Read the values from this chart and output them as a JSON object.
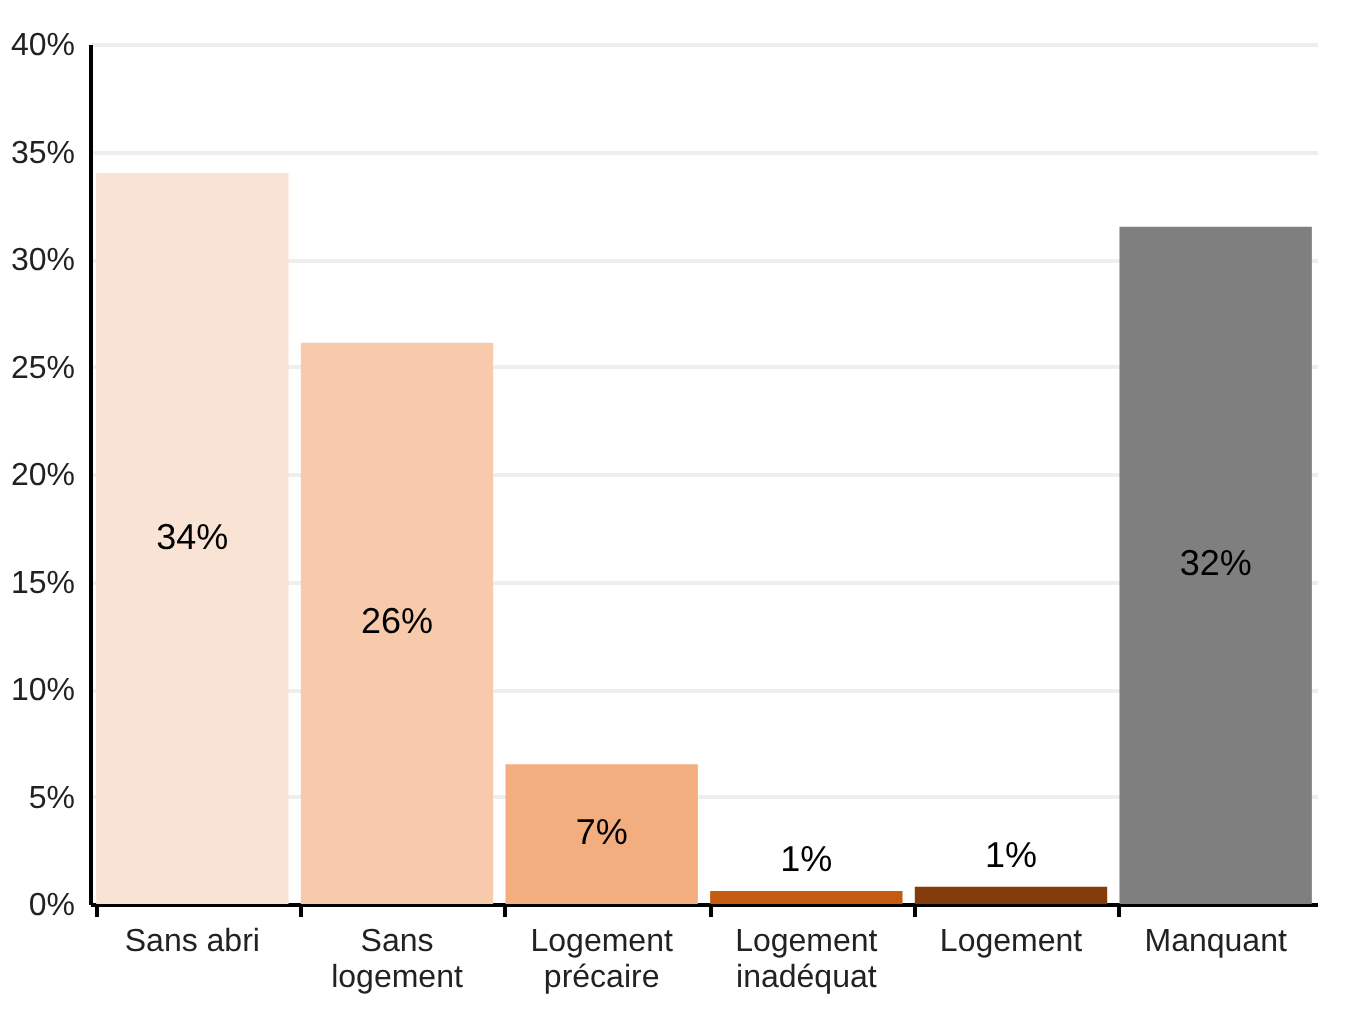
{
  "chart_data": {
    "type": "bar",
    "categories": [
      "Sans abri",
      "Sans\nlogement",
      "Logement\nprécaire",
      "Logement\ninadéquat",
      "Logement",
      "Manquant"
    ],
    "values": [
      34.0,
      26.1,
      6.5,
      0.6,
      0.8,
      31.5
    ],
    "value_labels": [
      "34%",
      "26%",
      "7%",
      "1%",
      "1%",
      "32%"
    ],
    "colors": [
      "#f9e3d5",
      "#f6caab",
      "#f3ae80",
      "#c55a11",
      "#843c0c",
      "#7f7f7f"
    ],
    "ylim": [
      0,
      40
    ],
    "yticks": [
      {
        "value": 0,
        "label": "0%"
      },
      {
        "value": 5,
        "label": "5%"
      },
      {
        "value": 10,
        "label": "10%"
      },
      {
        "value": 15,
        "label": "15%"
      },
      {
        "value": 20,
        "label": "20%"
      },
      {
        "value": 25,
        "label": "25%"
      },
      {
        "value": 30,
        "label": "30%"
      },
      {
        "value": 35,
        "label": "35%"
      },
      {
        "value": 40,
        "label": "40%"
      }
    ],
    "grid": "y",
    "legend": false
  }
}
